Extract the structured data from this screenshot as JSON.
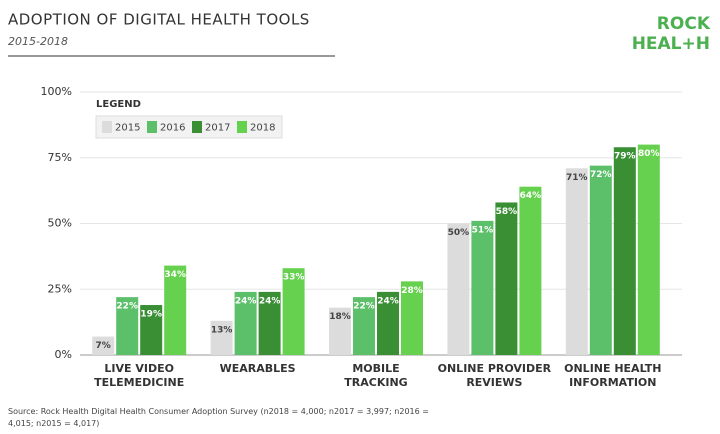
{
  "chart_data": {
    "type": "bar",
    "title": "ADOPTION OF DIGITAL HEALTH TOOLS",
    "subtitle": "2015-2018",
    "logo": [
      "ROCK",
      "HEAL+H"
    ],
    "legend_title": "LEGEND",
    "legend": "top-left",
    "grid": true,
    "categories": [
      [
        "LIVE VIDEO",
        "TELEMEDICINE"
      ],
      [
        "WEARABLES"
      ],
      [
        "MOBILE",
        "TRACKING"
      ],
      [
        "ONLINE PROVIDER",
        "REVIEWS"
      ],
      [
        "ONLINE HEALTH",
        "INFORMATION"
      ]
    ],
    "series": [
      {
        "name": "2015",
        "color": "#dcdcdc",
        "values": [
          7,
          13,
          18,
          50,
          71
        ],
        "value_labels": [
          "7%",
          "13%",
          "18%",
          "50%",
          "71%"
        ]
      },
      {
        "name": "2016",
        "color": "#5cbf6a",
        "values": [
          22,
          24,
          22,
          51,
          72
        ],
        "value_labels": [
          "22%",
          "24%",
          "22%",
          "51%",
          "72%"
        ]
      },
      {
        "name": "2017",
        "color": "#3a8f35",
        "values": [
          19,
          24,
          24,
          58,
          79
        ],
        "value_labels": [
          "19%",
          "24%",
          "24%",
          "58%",
          "79%"
        ]
      },
      {
        "name": "2018",
        "color": "#66d14f",
        "values": [
          34,
          33,
          28,
          64,
          80
        ],
        "value_labels": [
          "34%",
          "33%",
          "28%",
          "64%",
          "80%"
        ]
      }
    ],
    "ylim": [
      0,
      100
    ],
    "yticks": [
      {
        "value": 0,
        "label": "0%"
      },
      {
        "value": 25,
        "label": "25%"
      },
      {
        "value": 50,
        "label": "50%"
      },
      {
        "value": 75,
        "label": "75%"
      },
      {
        "value": 100,
        "label": "100%"
      }
    ],
    "source": "Source: Rock Health Digital Health Consumer Adoption Survey (n2018 = 4,000; n2017 = 3,997; n2016 = 4,015; n2015 = 4,017)"
  }
}
